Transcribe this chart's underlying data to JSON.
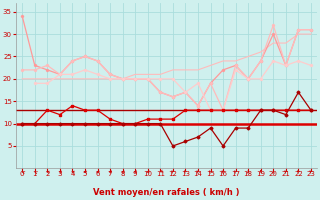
{
  "x": [
    0,
    1,
    2,
    3,
    4,
    5,
    6,
    7,
    8,
    9,
    10,
    11,
    12,
    13,
    14,
    15,
    16,
    17,
    18,
    19,
    20,
    21,
    22,
    23
  ],
  "series": {
    "rafales_top": [
      34,
      23,
      22,
      21,
      24,
      25,
      24,
      21,
      20,
      20,
      20,
      17,
      16,
      17,
      14,
      19,
      22,
      23,
      20,
      24,
      30,
      23,
      31,
      31
    ],
    "rafales_mid": [
      22,
      22,
      23,
      21,
      24,
      25,
      24,
      21,
      20,
      20,
      20,
      17,
      16,
      17,
      14,
      19,
      13,
      23,
      20,
      24,
      32,
      23,
      31,
      31
    ],
    "rafales_low": [
      19,
      19,
      19,
      21,
      21,
      22,
      21,
      20,
      20,
      20,
      20,
      20,
      20,
      17,
      19,
      13,
      13,
      22,
      20,
      20,
      24,
      23,
      24,
      23
    ],
    "rising_line": [
      20,
      20,
      20,
      20,
      20,
      20,
      20,
      20,
      20,
      21,
      21,
      21,
      22,
      22,
      22,
      23,
      24,
      24,
      25,
      26,
      28,
      28,
      30,
      30
    ],
    "wind_high": [
      10,
      10,
      13,
      12,
      14,
      13,
      13,
      11,
      10,
      10,
      11,
      11,
      11,
      13,
      13,
      13,
      13,
      13,
      13,
      13,
      13,
      13,
      13,
      13
    ],
    "wind_low": [
      10,
      10,
      10,
      10,
      10,
      10,
      10,
      10,
      10,
      10,
      10,
      10,
      5,
      6,
      7,
      9,
      5,
      9,
      9,
      13,
      13,
      12,
      17,
      13
    ],
    "flat10": [
      10,
      10,
      10,
      10,
      10,
      10,
      10,
      10,
      10,
      10,
      10,
      10,
      10,
      10,
      10,
      10,
      10,
      10,
      10,
      10,
      10,
      10,
      10,
      10
    ],
    "flat13": [
      13,
      13,
      13,
      13,
      13,
      13,
      13,
      13,
      13,
      13,
      13,
      13,
      13,
      13,
      13,
      13,
      13,
      13,
      13,
      13,
      13,
      13,
      13,
      13
    ]
  },
  "arrow_dirs": [
    225,
    225,
    247,
    247,
    247,
    247,
    270,
    270,
    270,
    270,
    270,
    315,
    202,
    202,
    202,
    202,
    202,
    202,
    180,
    180,
    180,
    202,
    202,
    202
  ],
  "bg_color": "#cff0ee",
  "grid_color": "#aadddd",
  "c_salmon1": "#ff9999",
  "c_salmon2": "#ffbbbb",
  "c_salmon3": "#ffcccc",
  "c_red": "#dd0000",
  "c_darkred": "#aa0000",
  "xlabel": "Vent moyen/en rafales ( km/h )",
  "xlabel_color": "#cc0000",
  "xlabel_fontsize": 6,
  "tick_color": "#cc0000",
  "tick_fontsize": 5,
  "ylim": [
    0,
    37
  ],
  "yticks": [
    5,
    10,
    15,
    20,
    25,
    30,
    35
  ],
  "xticks": [
    0,
    1,
    2,
    3,
    4,
    5,
    6,
    7,
    8,
    9,
    10,
    11,
    12,
    13,
    14,
    15,
    16,
    17,
    18,
    19,
    20,
    21,
    22,
    23
  ]
}
